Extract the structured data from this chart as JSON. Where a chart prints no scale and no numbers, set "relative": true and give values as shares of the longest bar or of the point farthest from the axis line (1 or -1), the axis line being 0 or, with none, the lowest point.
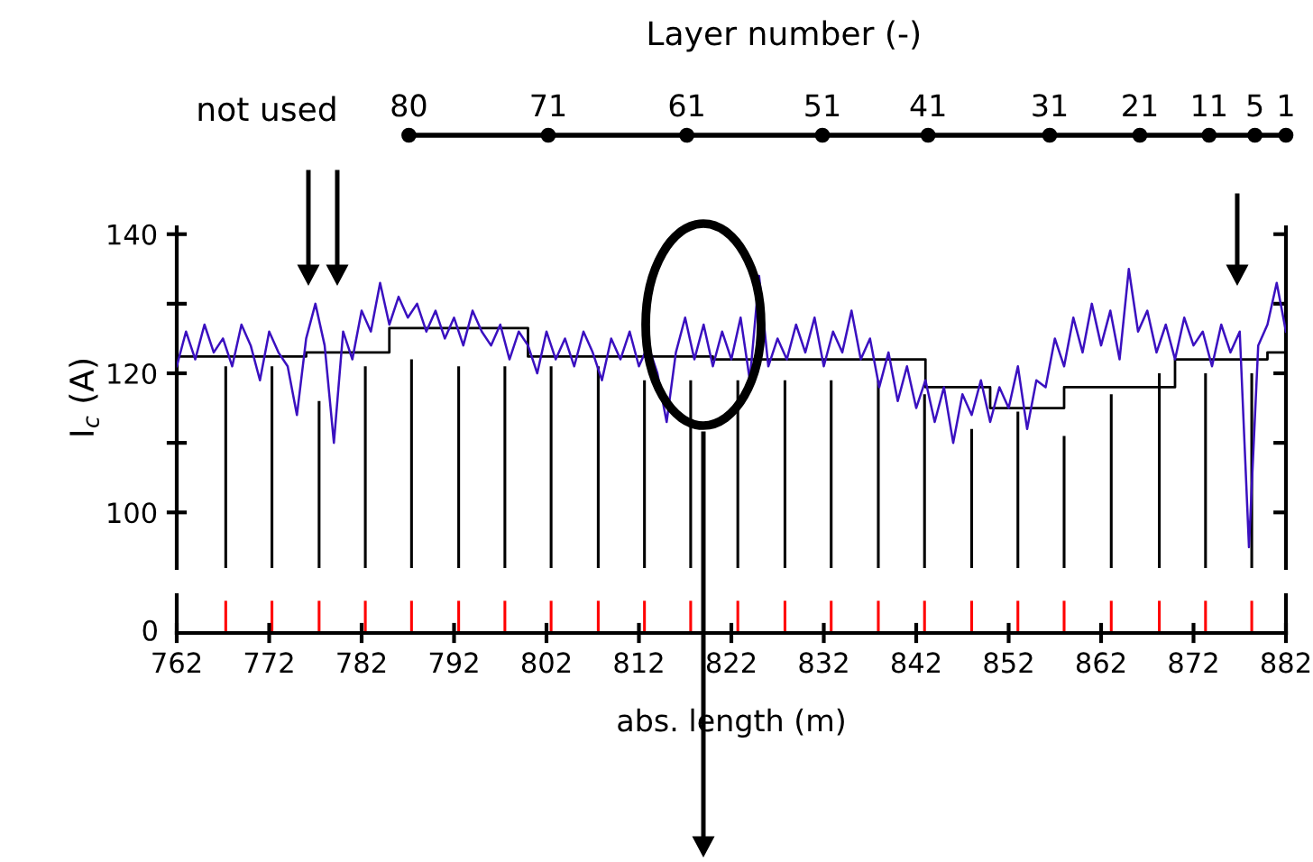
{
  "chart_data": [
    {
      "type": "line",
      "ylabel": "I$_{c}$ (A)",
      "xlim": [
        762,
        882
      ],
      "ylim": [
        92,
        141
      ],
      "yticks": [
        100,
        {
          "value": 110,
          "label": null
        },
        120,
        {
          "value": 130,
          "label": null
        },
        140
      ],
      "tick_labels": "y",
      "grid": false,
      "legend": false,
      "annotations": [
        "not used",
        "Layer number (-)",
        "80",
        "71",
        "61",
        "51",
        "41",
        "31",
        "21",
        "11",
        "5",
        "1"
      ],
      "series": [
        {
          "type": "bar",
          "color": "#000000",
          "x": [
            767.3,
            772.3,
            777.4,
            782.4,
            787.4,
            792.5,
            797.5,
            802.5,
            807.6,
            812.6,
            817.6,
            822.7,
            827.8,
            832.8,
            837.9,
            842.9,
            848.0,
            853.0,
            858.0,
            863.1,
            868.3,
            873.3,
            878.3
          ],
          "values": [
            121,
            121,
            116,
            121,
            122,
            121,
            121,
            121,
            121,
            119,
            119,
            119,
            119,
            119,
            119,
            117,
            112,
            114.5,
            111,
            117,
            120,
            120,
            120
          ]
        },
        {
          "type": "step",
          "color": "#000000",
          "x": [
            762,
            776,
            785,
            800,
            820,
            843,
            850,
            858,
            870,
            880,
            882
          ],
          "values": [
            122.4,
            123,
            126.5,
            122.4,
            122,
            118,
            115,
            118,
            122,
            123,
            123
          ]
        },
        {
          "type": "line",
          "color": "#3a10c0",
          "x": [
            762,
            763,
            764,
            765,
            766,
            767,
            768,
            769,
            770,
            771,
            772,
            773,
            774,
            775,
            776,
            777,
            778,
            779,
            780,
            781,
            782,
            783,
            784,
            785,
            786,
            787,
            788,
            789,
            790,
            791,
            792,
            793,
            794,
            795,
            796,
            797,
            798,
            799,
            800,
            801,
            802,
            803,
            804,
            805,
            806,
            807,
            808,
            809,
            810,
            811,
            812,
            813,
            814,
            815,
            816,
            817,
            818,
            819,
            820,
            821,
            822,
            823,
            824,
            825,
            826,
            827,
            828,
            829,
            830,
            831,
            832,
            833,
            834,
            835,
            836,
            837,
            838,
            839,
            840,
            841,
            842,
            843,
            844,
            845,
            846,
            847,
            848,
            849,
            850,
            851,
            852,
            853,
            854,
            855,
            856,
            857,
            858,
            859,
            860,
            861,
            862,
            863,
            864,
            865,
            866,
            867,
            868,
            869,
            870,
            871,
            872,
            873,
            874,
            875,
            876,
            877,
            878,
            879,
            880,
            881,
            882
          ],
          "values": [
            121,
            126,
            122,
            127,
            123,
            125,
            121,
            127,
            124,
            119,
            126,
            123,
            121,
            114,
            125,
            130,
            124,
            110,
            126,
            122,
            129,
            126,
            133,
            127,
            131,
            128,
            130,
            126,
            129,
            125,
            128,
            124,
            129,
            126,
            124,
            127,
            122,
            126,
            124,
            120,
            126,
            122,
            125,
            121,
            126,
            123,
            119,
            125,
            122,
            126,
            121,
            124,
            120,
            113,
            123,
            128,
            122,
            127,
            121,
            126,
            122,
            128,
            119,
            134,
            121,
            125,
            122,
            127,
            123,
            128,
            121,
            126,
            123,
            129,
            122,
            125,
            118,
            123,
            116,
            121,
            115,
            119,
            113,
            118,
            110,
            117,
            114,
            119,
            113,
            118,
            115,
            121,
            112,
            119,
            118,
            125,
            121,
            128,
            123,
            130,
            124,
            129,
            122,
            135,
            126,
            129,
            123,
            127,
            122,
            128,
            124,
            126,
            121,
            127,
            123,
            126,
            95,
            124,
            127,
            133,
            126
          ]
        }
      ]
    },
    {
      "type": "bar",
      "xlabel": "abs. length (m)",
      "xlim": [
        762,
        882
      ],
      "relative": true,
      "annotations": [
        "0"
      ],
      "xticks": [
        762,
        772,
        782,
        792,
        802,
        812,
        822,
        832,
        842,
        852,
        862,
        872,
        882
      ],
      "grid": false,
      "legend": false,
      "x": [
        767.3,
        772.3,
        777.4,
        782.4,
        787.4,
        792.5,
        797.5,
        802.5,
        807.6,
        812.6,
        817.6,
        822.7,
        827.8,
        832.8,
        837.9,
        842.9,
        848.0,
        853.0,
        858.0,
        863.1,
        868.3,
        873.3,
        878.3
      ],
      "values": [
        1,
        1,
        1,
        1,
        1,
        1,
        1,
        1,
        1,
        1,
        1,
        1,
        1,
        1,
        1,
        1,
        1,
        1,
        1,
        1,
        1,
        1,
        1
      ],
      "color": "#ff0000"
    }
  ]
}
